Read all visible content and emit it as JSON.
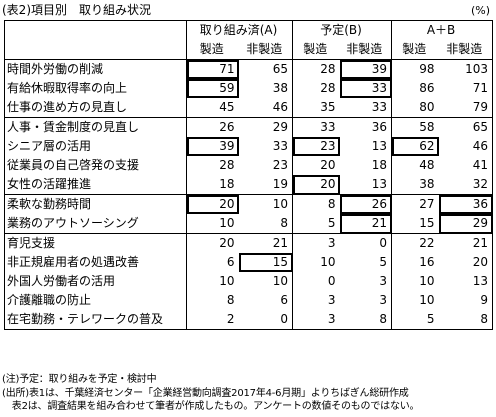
{
  "title": "(表2)項目別　取り組み状況",
  "unit": "(%)",
  "header": {
    "groups": [
      "取り組み済(A)",
      "予定(B)",
      "A＋B"
    ],
    "sub": [
      "製造",
      "非製造",
      "製造",
      "非製造",
      "製造",
      "非製造"
    ]
  },
  "rows": [
    {
      "label": "時間外労働の削減",
      "values": [
        "71",
        "65",
        "28",
        "39",
        "98",
        "103"
      ]
    },
    {
      "label": "有給休暇取得率の向上",
      "values": [
        "59",
        "38",
        "28",
        "33",
        "86",
        "71"
      ]
    },
    {
      "label": "仕事の進め方の見直し",
      "values": [
        "45",
        "46",
        "35",
        "33",
        "80",
        "79"
      ]
    },
    {
      "label": "人事・賃金制度の見直し",
      "values": [
        "26",
        "29",
        "33",
        "36",
        "58",
        "65"
      ]
    },
    {
      "label": "シニア層の活用",
      "values": [
        "39",
        "33",
        "23",
        "13",
        "62",
        "46"
      ]
    },
    {
      "label": "従業員の自己啓発の支援",
      "values": [
        "28",
        "23",
        "20",
        "18",
        "48",
        "41"
      ]
    },
    {
      "label": "女性の活躍推進",
      "values": [
        "18",
        "19",
        "20",
        "13",
        "38",
        "32"
      ]
    },
    {
      "label": "柔軟な勤務時間",
      "values": [
        "20",
        "10",
        "8",
        "26",
        "27",
        "36"
      ]
    },
    {
      "label": "業務のアウトソーシング",
      "values": [
        "10",
        "8",
        "5",
        "21",
        "15",
        "29"
      ]
    },
    {
      "label": "育児支援",
      "values": [
        "20",
        "21",
        "3",
        "0",
        "22",
        "21"
      ]
    },
    {
      "label": "非正規雇用者の処遇改善",
      "values": [
        "6",
        "15",
        "10",
        "5",
        "16",
        "20"
      ]
    },
    {
      "label": "外国人労働者の活用",
      "values": [
        "10",
        "10",
        "0",
        "3",
        "10",
        "13"
      ]
    },
    {
      "label": "介護離職の防止",
      "values": [
        "8",
        "6",
        "3",
        "3",
        "10",
        "9"
      ]
    },
    {
      "label": "在宅勤務・テレワークの普及",
      "values": [
        "2",
        "0",
        "3",
        "8",
        "5",
        "8"
      ]
    }
  ],
  "notes": [
    "(注)予定：取り組みを予定・検討中",
    "(出所)表1は、千葉経済センター「企業経営動向調査2017年4-6月期」よりちばぎん総研作成",
    "　表2は、調査結果を組み合わせて筆者が作成したもの。アンケートの数値そのものではない。"
  ]
}
